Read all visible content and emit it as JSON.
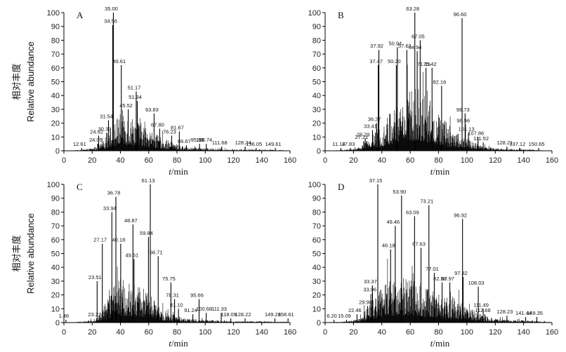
{
  "chart_data": [
    {
      "type": "bar",
      "panel": "A",
      "xlim": [
        0,
        160
      ],
      "ylim": [
        0,
        100
      ],
      "xticks": [
        0,
        20,
        40,
        60,
        80,
        100,
        120,
        140,
        160
      ],
      "yticks": [
        0,
        10,
        20,
        30,
        40,
        50,
        60,
        70,
        80,
        90,
        100
      ],
      "ylabel_cn": "相对丰度",
      "ylabel_en": "Relative abundance",
      "xlabel_var": "t",
      "xlabel_unit": "/min",
      "peaks": [
        {
          "label": "12.61",
          "x": 12.61,
          "y": 2
        },
        {
          "label": "24.05",
          "x": 24.05,
          "y": 5
        },
        {
          "label": "24.62",
          "x": 24.62,
          "y": 11
        },
        {
          "label": "30.33",
          "x": 30.33,
          "y": 13
        },
        {
          "label": "31.54",
          "x": 31.54,
          "y": 22
        },
        {
          "label": "34.56",
          "x": 34.56,
          "y": 91
        },
        {
          "label": "35.00",
          "x": 35.0,
          "y": 100
        },
        {
          "label": "40.61",
          "x": 40.61,
          "y": 62
        },
        {
          "label": "45.52",
          "x": 45.52,
          "y": 30
        },
        {
          "label": "51.17",
          "x": 51.17,
          "y": 43
        },
        {
          "label": "51.94",
          "x": 51.94,
          "y": 36
        },
        {
          "label": "63.83",
          "x": 63.83,
          "y": 27
        },
        {
          "label": "67.80",
          "x": 67.8,
          "y": 16
        },
        {
          "label": "76.23",
          "x": 76.23,
          "y": 11
        },
        {
          "label": "81.67",
          "x": 81.67,
          "y": 14
        },
        {
          "label": "86.67",
          "x": 86.67,
          "y": 4
        },
        {
          "label": "95.98",
          "x": 95.98,
          "y": 5
        },
        {
          "label": "100.74",
          "x": 100.74,
          "y": 5
        },
        {
          "label": "111.68",
          "x": 111.68,
          "y": 3
        },
        {
          "label": "128.24",
          "x": 128.24,
          "y": 3
        },
        {
          "label": "136.05",
          "x": 136.05,
          "y": 2
        },
        {
          "label": "149.61",
          "x": 149.61,
          "y": 2
        }
      ],
      "envelope": [
        [
          0,
          0
        ],
        [
          10,
          0.5
        ],
        [
          15,
          1
        ],
        [
          20,
          2
        ],
        [
          25,
          4
        ],
        [
          28,
          7
        ],
        [
          30,
          12
        ],
        [
          32,
          16
        ],
        [
          34,
          20
        ],
        [
          38,
          25
        ],
        [
          42,
          30
        ],
        [
          46,
          27
        ],
        [
          50,
          24
        ],
        [
          55,
          20
        ],
        [
          60,
          17
        ],
        [
          65,
          12
        ],
        [
          70,
          9
        ],
        [
          75,
          7
        ],
        [
          80,
          5
        ],
        [
          85,
          3
        ],
        [
          90,
          2.5
        ],
        [
          100,
          2
        ],
        [
          110,
          1.5
        ],
        [
          120,
          1
        ],
        [
          140,
          1
        ],
        [
          155,
          0.5
        ],
        [
          160,
          0
        ]
      ]
    },
    {
      "type": "bar",
      "panel": "B",
      "xlim": [
        0,
        160
      ],
      "ylim": [
        0,
        100
      ],
      "xticks": [
        0,
        20,
        40,
        60,
        80,
        100,
        120,
        140,
        160
      ],
      "yticks": [
        0,
        10,
        20,
        30,
        40,
        50,
        60,
        70,
        80,
        90,
        100
      ],
      "xlabel_var": "t",
      "xlabel_unit": "/min",
      "peaks": [
        {
          "label": "11.14",
          "x": 11.14,
          "y": 2
        },
        {
          "label": "17.83",
          "x": 17.83,
          "y": 2
        },
        {
          "label": "27.21",
          "x": 27.21,
          "y": 7
        },
        {
          "label": "28.29",
          "x": 28.29,
          "y": 9
        },
        {
          "label": "33.41",
          "x": 33.41,
          "y": 15
        },
        {
          "label": "36.27",
          "x": 36.27,
          "y": 20
        },
        {
          "label": "37.47",
          "x": 37.47,
          "y": 62
        },
        {
          "label": "37.92",
          "x": 37.92,
          "y": 73
        },
        {
          "label": "50.20",
          "x": 50.2,
          "y": 62
        },
        {
          "label": "50.94",
          "x": 50.94,
          "y": 75
        },
        {
          "label": "57.63",
          "x": 57.63,
          "y": 73
        },
        {
          "label": "63.28",
          "x": 63.28,
          "y": 100
        },
        {
          "label": "64.94",
          "x": 64.94,
          "y": 72
        },
        {
          "label": "67.05",
          "x": 67.05,
          "y": 80
        },
        {
          "label": "71.15",
          "x": 71.15,
          "y": 60
        },
        {
          "label": "75.42",
          "x": 75.42,
          "y": 60
        },
        {
          "label": "82.16",
          "x": 82.16,
          "y": 47
        },
        {
          "label": "96.60",
          "x": 96.6,
          "y": 96
        },
        {
          "label": "98.73",
          "x": 98.73,
          "y": 27
        },
        {
          "label": "98.96",
          "x": 98.96,
          "y": 19
        },
        {
          "label": "101.13",
          "x": 101.13,
          "y": 13
        },
        {
          "label": "107.86",
          "x": 107.86,
          "y": 10
        },
        {
          "label": "111.52",
          "x": 111.52,
          "y": 6
        },
        {
          "label": "128.21",
          "x": 128.21,
          "y": 3
        },
        {
          "label": "137.12",
          "x": 137.12,
          "y": 2
        },
        {
          "label": "150.65",
          "x": 150.65,
          "y": 2
        }
      ],
      "envelope": [
        [
          0,
          0
        ],
        [
          10,
          0.5
        ],
        [
          20,
          1.5
        ],
        [
          25,
          3
        ],
        [
          30,
          8
        ],
        [
          35,
          14
        ],
        [
          40,
          20
        ],
        [
          45,
          28
        ],
        [
          50,
          35
        ],
        [
          55,
          40
        ],
        [
          60,
          45
        ],
        [
          65,
          48
        ],
        [
          70,
          42
        ],
        [
          75,
          35
        ],
        [
          80,
          28
        ],
        [
          85,
          22
        ],
        [
          90,
          17
        ],
        [
          95,
          13
        ],
        [
          100,
          9
        ],
        [
          105,
          6
        ],
        [
          110,
          4
        ],
        [
          115,
          3
        ],
        [
          120,
          2
        ],
        [
          130,
          1.5
        ],
        [
          145,
          1
        ],
        [
          160,
          0
        ]
      ]
    },
    {
      "type": "bar",
      "panel": "C",
      "xlim": [
        0,
        160
      ],
      "ylim": [
        0,
        100
      ],
      "xticks": [
        0,
        20,
        40,
        60,
        80,
        100,
        120,
        140,
        160
      ],
      "yticks": [
        0,
        10,
        20,
        30,
        40,
        50,
        60,
        70,
        80,
        90,
        100
      ],
      "ylabel_cn": "相对丰度",
      "ylabel_en": "Relative abundance",
      "xlabel_var": "t",
      "xlabel_unit": "/min",
      "peaks": [
        {
          "label": "1.46",
          "x": 1.46,
          "y": 2
        },
        {
          "label": "23.22",
          "x": 23.22,
          "y": 3
        },
        {
          "label": "23.51",
          "x": 23.51,
          "y": 30
        },
        {
          "label": "27.17",
          "x": 27.17,
          "y": 57
        },
        {
          "label": "33.94",
          "x": 33.94,
          "y": 80
        },
        {
          "label": "36.78",
          "x": 36.78,
          "y": 91
        },
        {
          "label": "40.18",
          "x": 40.18,
          "y": 57
        },
        {
          "label": "48.87",
          "x": 48.87,
          "y": 71
        },
        {
          "label": "49.61",
          "x": 49.61,
          "y": 46
        },
        {
          "label": "59.84",
          "x": 59.84,
          "y": 62
        },
        {
          "label": "61.13",
          "x": 61.13,
          "y": 100
        },
        {
          "label": "66.71",
          "x": 66.71,
          "y": 48
        },
        {
          "label": "75.75",
          "x": 75.75,
          "y": 29
        },
        {
          "label": "78.31",
          "x": 78.31,
          "y": 17
        },
        {
          "label": "81.10",
          "x": 81.1,
          "y": 10
        },
        {
          "label": "91.24",
          "x": 91.24,
          "y": 6
        },
        {
          "label": "95.66",
          "x": 95.66,
          "y": 17
        },
        {
          "label": "100.68",
          "x": 100.68,
          "y": 7
        },
        {
          "label": "111.33",
          "x": 111.33,
          "y": 7
        },
        {
          "label": "118.09",
          "x": 118.09,
          "y": 3
        },
        {
          "label": "128.22",
          "x": 128.22,
          "y": 3
        },
        {
          "label": "149.28",
          "x": 149.28,
          "y": 3
        },
        {
          "label": "158.61",
          "x": 158.61,
          "y": 3
        }
      ],
      "envelope": [
        [
          0,
          0
        ],
        [
          10,
          0.5
        ],
        [
          20,
          2
        ],
        [
          25,
          6
        ],
        [
          30,
          16
        ],
        [
          35,
          26
        ],
        [
          40,
          32
        ],
        [
          45,
          30
        ],
        [
          50,
          28
        ],
        [
          55,
          26
        ],
        [
          60,
          22
        ],
        [
          65,
          15
        ],
        [
          70,
          10
        ],
        [
          75,
          7
        ],
        [
          80,
          5
        ],
        [
          85,
          3
        ],
        [
          90,
          2.5
        ],
        [
          100,
          2
        ],
        [
          110,
          1.5
        ],
        [
          120,
          1
        ],
        [
          140,
          1
        ],
        [
          160,
          0.5
        ]
      ]
    },
    {
      "type": "bar",
      "panel": "D",
      "xlim": [
        0,
        160
      ],
      "ylim": [
        0,
        100
      ],
      "xticks": [
        0,
        20,
        40,
        60,
        80,
        100,
        120,
        140,
        160
      ],
      "yticks": [
        0,
        10,
        20,
        30,
        40,
        50,
        60,
        70,
        80,
        90,
        100
      ],
      "xlabel_var": "t",
      "xlabel_unit": "/min",
      "peaks": [
        {
          "label": "6.20",
          "x": 6.2,
          "y": 2
        },
        {
          "label": "15.09",
          "x": 15.09,
          "y": 2
        },
        {
          "label": "22.46",
          "x": 22.46,
          "y": 6
        },
        {
          "label": "29.98",
          "x": 29.98,
          "y": 12
        },
        {
          "label": "33.06",
          "x": 33.06,
          "y": 21
        },
        {
          "label": "33.37",
          "x": 33.37,
          "y": 27
        },
        {
          "label": "37.15",
          "x": 37.15,
          "y": 100
        },
        {
          "label": "46.18",
          "x": 46.18,
          "y": 53
        },
        {
          "label": "49.46",
          "x": 49.46,
          "y": 70
        },
        {
          "label": "53.90",
          "x": 53.9,
          "y": 92
        },
        {
          "label": "63.09",
          "x": 63.09,
          "y": 77
        },
        {
          "label": "67.63",
          "x": 67.63,
          "y": 54
        },
        {
          "label": "73.21",
          "x": 73.21,
          "y": 85
        },
        {
          "label": "77.01",
          "x": 77.01,
          "y": 36
        },
        {
          "label": "82.50",
          "x": 82.5,
          "y": 29
        },
        {
          "label": "87.97",
          "x": 87.97,
          "y": 29
        },
        {
          "label": "96.92",
          "x": 96.92,
          "y": 75
        },
        {
          "label": "97.32",
          "x": 97.32,
          "y": 33
        },
        {
          "label": "108.03",
          "x": 108.03,
          "y": 26
        },
        {
          "label": "111.49",
          "x": 111.49,
          "y": 10
        },
        {
          "label": "112.68",
          "x": 112.68,
          "y": 6
        },
        {
          "label": "128.23",
          "x": 128.23,
          "y": 5
        },
        {
          "label": "141.44",
          "x": 141.44,
          "y": 4
        },
        {
          "label": "149.35",
          "x": 149.35,
          "y": 4
        }
      ],
      "envelope": [
        [
          0,
          0
        ],
        [
          10,
          0.5
        ],
        [
          20,
          1.5
        ],
        [
          25,
          4
        ],
        [
          30,
          12
        ],
        [
          35,
          20
        ],
        [
          40,
          27
        ],
        [
          45,
          30
        ],
        [
          50,
          32
        ],
        [
          55,
          33
        ],
        [
          60,
          32
        ],
        [
          65,
          30
        ],
        [
          70,
          28
        ],
        [
          75,
          25
        ],
        [
          80,
          22
        ],
        [
          85,
          19
        ],
        [
          90,
          17
        ],
        [
          95,
          15
        ],
        [
          100,
          12
        ],
        [
          105,
          9
        ],
        [
          110,
          6
        ],
        [
          115,
          4
        ],
        [
          120,
          3
        ],
        [
          130,
          2
        ],
        [
          145,
          1.5
        ],
        [
          160,
          0.5
        ]
      ]
    }
  ]
}
